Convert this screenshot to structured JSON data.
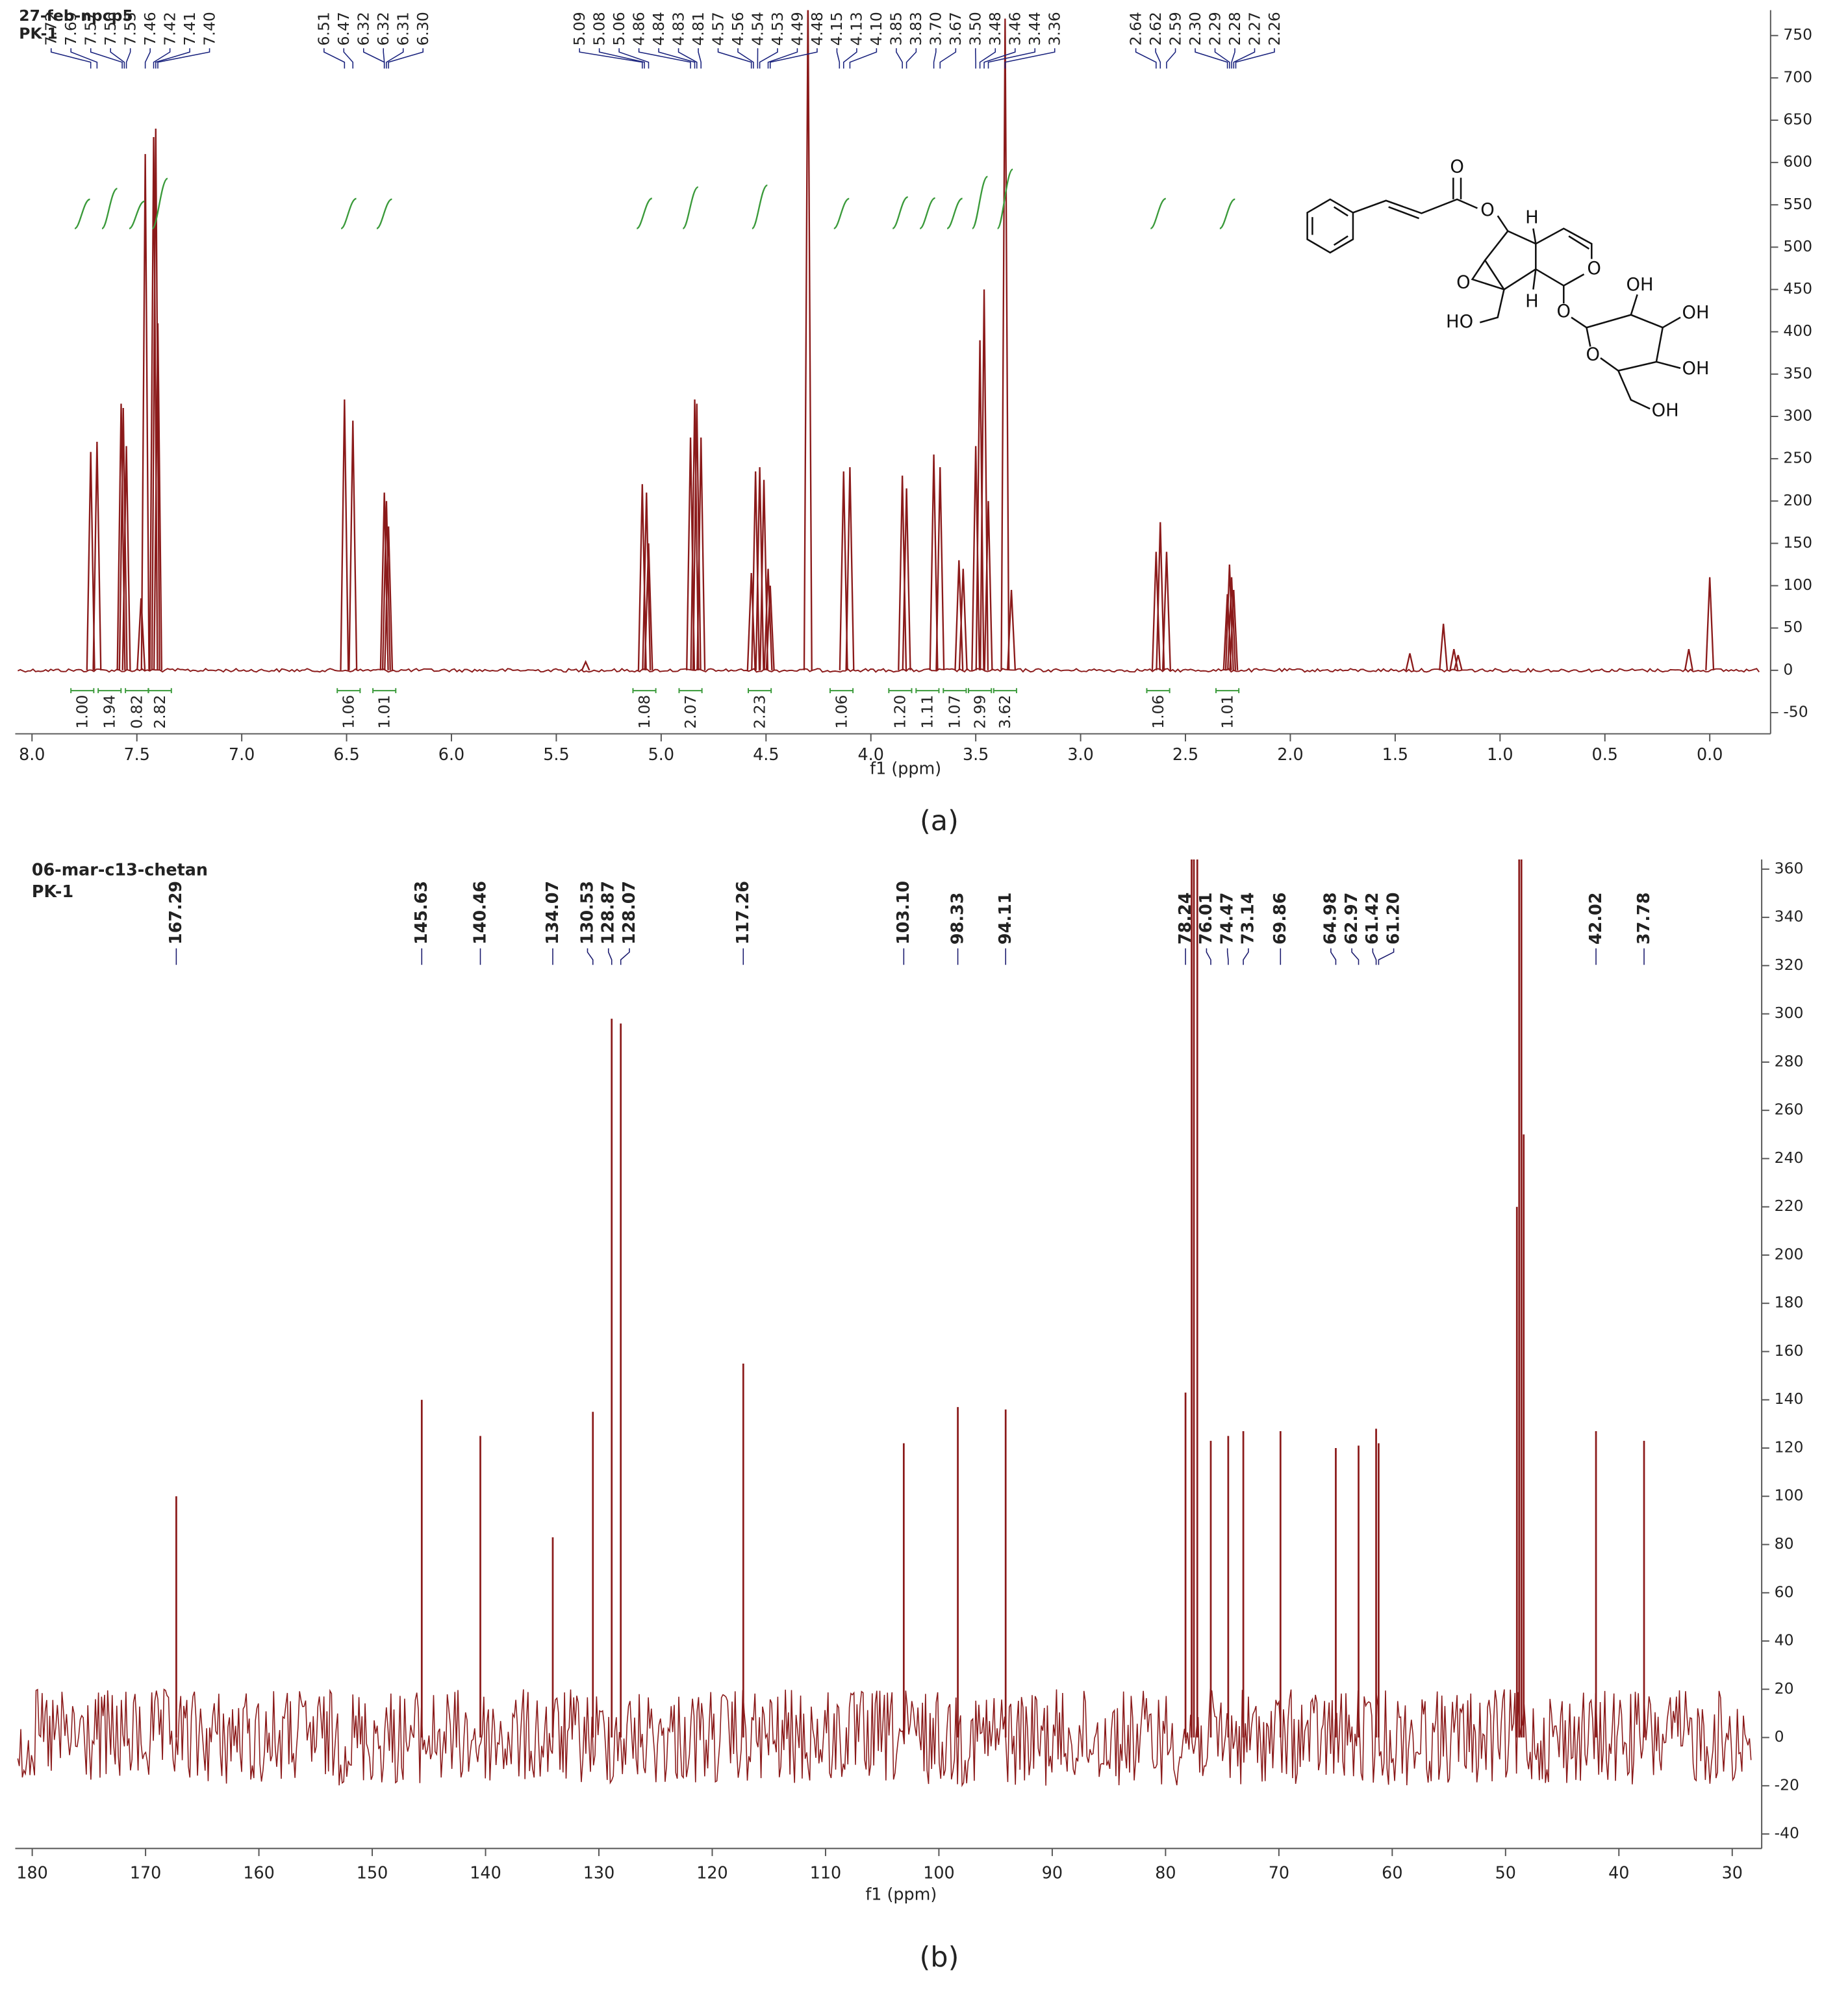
{
  "chart_data": [
    {
      "type": "line",
      "title": "27-feb-npcp5",
      "subtitle": "PK-1",
      "xlabel": "f1 (ppm)",
      "caption": "(a)",
      "color": "#8b1a1a",
      "integral_color": "#3a9a3a",
      "label_color": "#1a237e",
      "xlim": [
        8.08,
        -0.29
      ],
      "ylim": [
        -75,
        780
      ],
      "xticks": [
        {
          "value": 8,
          "label": "8.0"
        },
        7.5,
        {
          "value": 7,
          "label": "7.0"
        },
        6.5,
        {
          "value": 6,
          "label": "6.0"
        },
        5.5,
        {
          "value": 5,
          "label": "5.0"
        },
        4.5,
        {
          "value": 4,
          "label": "4.0"
        },
        3.5,
        {
          "value": 3,
          "label": "3.0"
        },
        2.5,
        {
          "value": 2,
          "label": "2.0"
        },
        1.5,
        {
          "value": 1,
          "label": "1.0"
        },
        0.5,
        {
          "value": 0,
          "label": "0.0"
        }
      ],
      "yticks": [
        -50,
        0,
        50,
        100,
        150,
        200,
        250,
        300,
        350,
        400,
        450,
        500,
        550,
        600,
        650,
        700,
        750
      ],
      "peak_labels": [
        7.72,
        7.69,
        7.57,
        7.56,
        7.55,
        7.46,
        7.42,
        7.41,
        {
          "value": 7.4,
          "label": "7.40"
        },
        6.51,
        6.47,
        6.32,
        6.32,
        6.31,
        {
          "value": 6.3,
          "label": "6.30"
        },
        5.09,
        5.08,
        5.06,
        4.86,
        4.84,
        4.83,
        4.81,
        4.57,
        4.56,
        4.54,
        4.53,
        4.49,
        4.48,
        4.15,
        4.13,
        {
          "value": 4.1,
          "label": "4.10"
        },
        3.85,
        3.83,
        {
          "value": 3.7,
          "label": "3.70"
        },
        3.67,
        {
          "value": 3.5,
          "label": "3.50"
        },
        3.48,
        3.46,
        3.44,
        3.36,
        2.64,
        2.62,
        2.59,
        {
          "value": 2.3,
          "label": "2.30"
        },
        2.29,
        2.28,
        2.27,
        2.26
      ],
      "integrals": [
        {
          "x": 7.76,
          "value": 1.0,
          "label": "1.00"
        },
        {
          "x": 7.63,
          "value": 1.94,
          "label": "1.94"
        },
        {
          "x": 7.5,
          "value": 0.82,
          "label": "0.82"
        },
        {
          "x": 7.39,
          "value": 2.82,
          "label": "2.82"
        },
        {
          "x": 6.49,
          "value": 1.06,
          "label": "1.06"
        },
        {
          "x": 6.32,
          "value": 1.01,
          "label": "1.01"
        },
        {
          "x": 5.08,
          "value": 1.08,
          "label": "1.08"
        },
        {
          "x": 4.86,
          "value": 2.07,
          "label": "2.07"
        },
        {
          "x": 4.53,
          "value": 2.23,
          "label": "2.23"
        },
        {
          "x": 4.14,
          "value": 1.06,
          "label": "1.06"
        },
        {
          "x": 3.86,
          "value": 1.2,
          "label": "1.20"
        },
        {
          "x": 3.73,
          "value": 1.11,
          "label": "1.11"
        },
        {
          "x": 3.6,
          "value": 1.07,
          "label": "1.07"
        },
        {
          "x": 3.48,
          "value": 2.99,
          "label": "2.99"
        },
        {
          "x": 3.36,
          "value": 3.62,
          "label": "3.62"
        },
        {
          "x": 2.63,
          "value": 1.06,
          "label": "1.06"
        },
        {
          "x": 2.3,
          "value": 1.01,
          "label": "1.01"
        }
      ],
      "spectrum": {
        "x": [
          7.72,
          7.69,
          7.575,
          7.565,
          7.55,
          7.48,
          7.46,
          7.42,
          7.41,
          7.4,
          6.51,
          6.47,
          6.32,
          6.31,
          6.3,
          5.09,
          5.07,
          5.06,
          4.86,
          4.84,
          4.83,
          4.81,
          4.57,
          4.55,
          4.53,
          4.51,
          4.49,
          4.48,
          4.3,
          4.13,
          4.1,
          3.85,
          3.83,
          3.7,
          3.67,
          3.58,
          3.56,
          3.5,
          3.48,
          3.46,
          3.44,
          3.36,
          3.33,
          2.64,
          2.62,
          2.59,
          2.3,
          2.29,
          2.28,
          2.27,
          1.43,
          1.27,
          1.22,
          1.2,
          0.1,
          0.0,
          5.36
        ],
        "values": [
          258,
          270,
          315,
          310,
          265,
          85,
          610,
          630,
          640,
          410,
          320,
          295,
          210,
          200,
          170,
          220,
          210,
          150,
          275,
          320,
          315,
          275,
          115,
          235,
          240,
          225,
          120,
          100,
          800,
          235,
          240,
          230,
          215,
          255,
          240,
          130,
          120,
          265,
          390,
          450,
          200,
          770,
          95,
          140,
          175,
          140,
          90,
          125,
          110,
          95,
          20,
          55,
          25,
          18,
          25,
          110,
          10
        ]
      },
      "annotations": [
        "O",
        "O",
        "H",
        "O",
        "H",
        "O",
        "HO",
        "O",
        "OH",
        "OH",
        "O",
        "OH",
        "OH"
      ]
    },
    {
      "type": "stem",
      "title": "06-mar-c13-chetan",
      "subtitle": "PK-1",
      "xlabel": "f1 (ppm)",
      "caption": "(b)",
      "color": "#8b1a1a",
      "label_color": "#1a1a6e",
      "xlim": [
        181.5,
        27.4
      ],
      "ylim": [
        -46,
        364
      ],
      "xticks": [
        180,
        170,
        160,
        150,
        140,
        130,
        120,
        110,
        100,
        90,
        80,
        70,
        60,
        50,
        40,
        30
      ],
      "yticks": [
        -40,
        -20,
        0,
        20,
        40,
        60,
        80,
        100,
        120,
        140,
        160,
        180,
        200,
        220,
        240,
        260,
        280,
        300,
        320,
        340,
        360
      ],
      "peak_labels": [
        167.29,
        145.63,
        140.46,
        134.07,
        130.53,
        128.87,
        128.07,
        117.26,
        {
          "value": 103.1,
          "label": "103.10"
        },
        98.33,
        94.11,
        78.24,
        76.01,
        74.47,
        73.14,
        69.86,
        64.98,
        62.97,
        61.42,
        {
          "value": 61.2,
          "label": "61.20"
        },
        42.02,
        37.78
      ],
      "spectrum": {
        "x": [
          167.29,
          145.63,
          140.46,
          134.07,
          130.53,
          128.87,
          128.07,
          117.26,
          103.1,
          98.33,
          94.11,
          78.24,
          77.7,
          77.5,
          77.2,
          76.01,
          74.47,
          73.14,
          69.86,
          64.98,
          62.97,
          61.42,
          61.2,
          49.0,
          48.8,
          48.6,
          48.4,
          42.02,
          37.78
        ],
        "values": [
          100,
          140,
          125,
          83,
          135,
          298,
          296,
          155,
          122,
          137,
          136,
          143,
          370,
          370,
          370,
          123,
          125,
          127,
          127,
          120,
          121,
          128,
          122,
          220,
          370,
          370,
          250,
          127,
          123
        ]
      }
    }
  ]
}
